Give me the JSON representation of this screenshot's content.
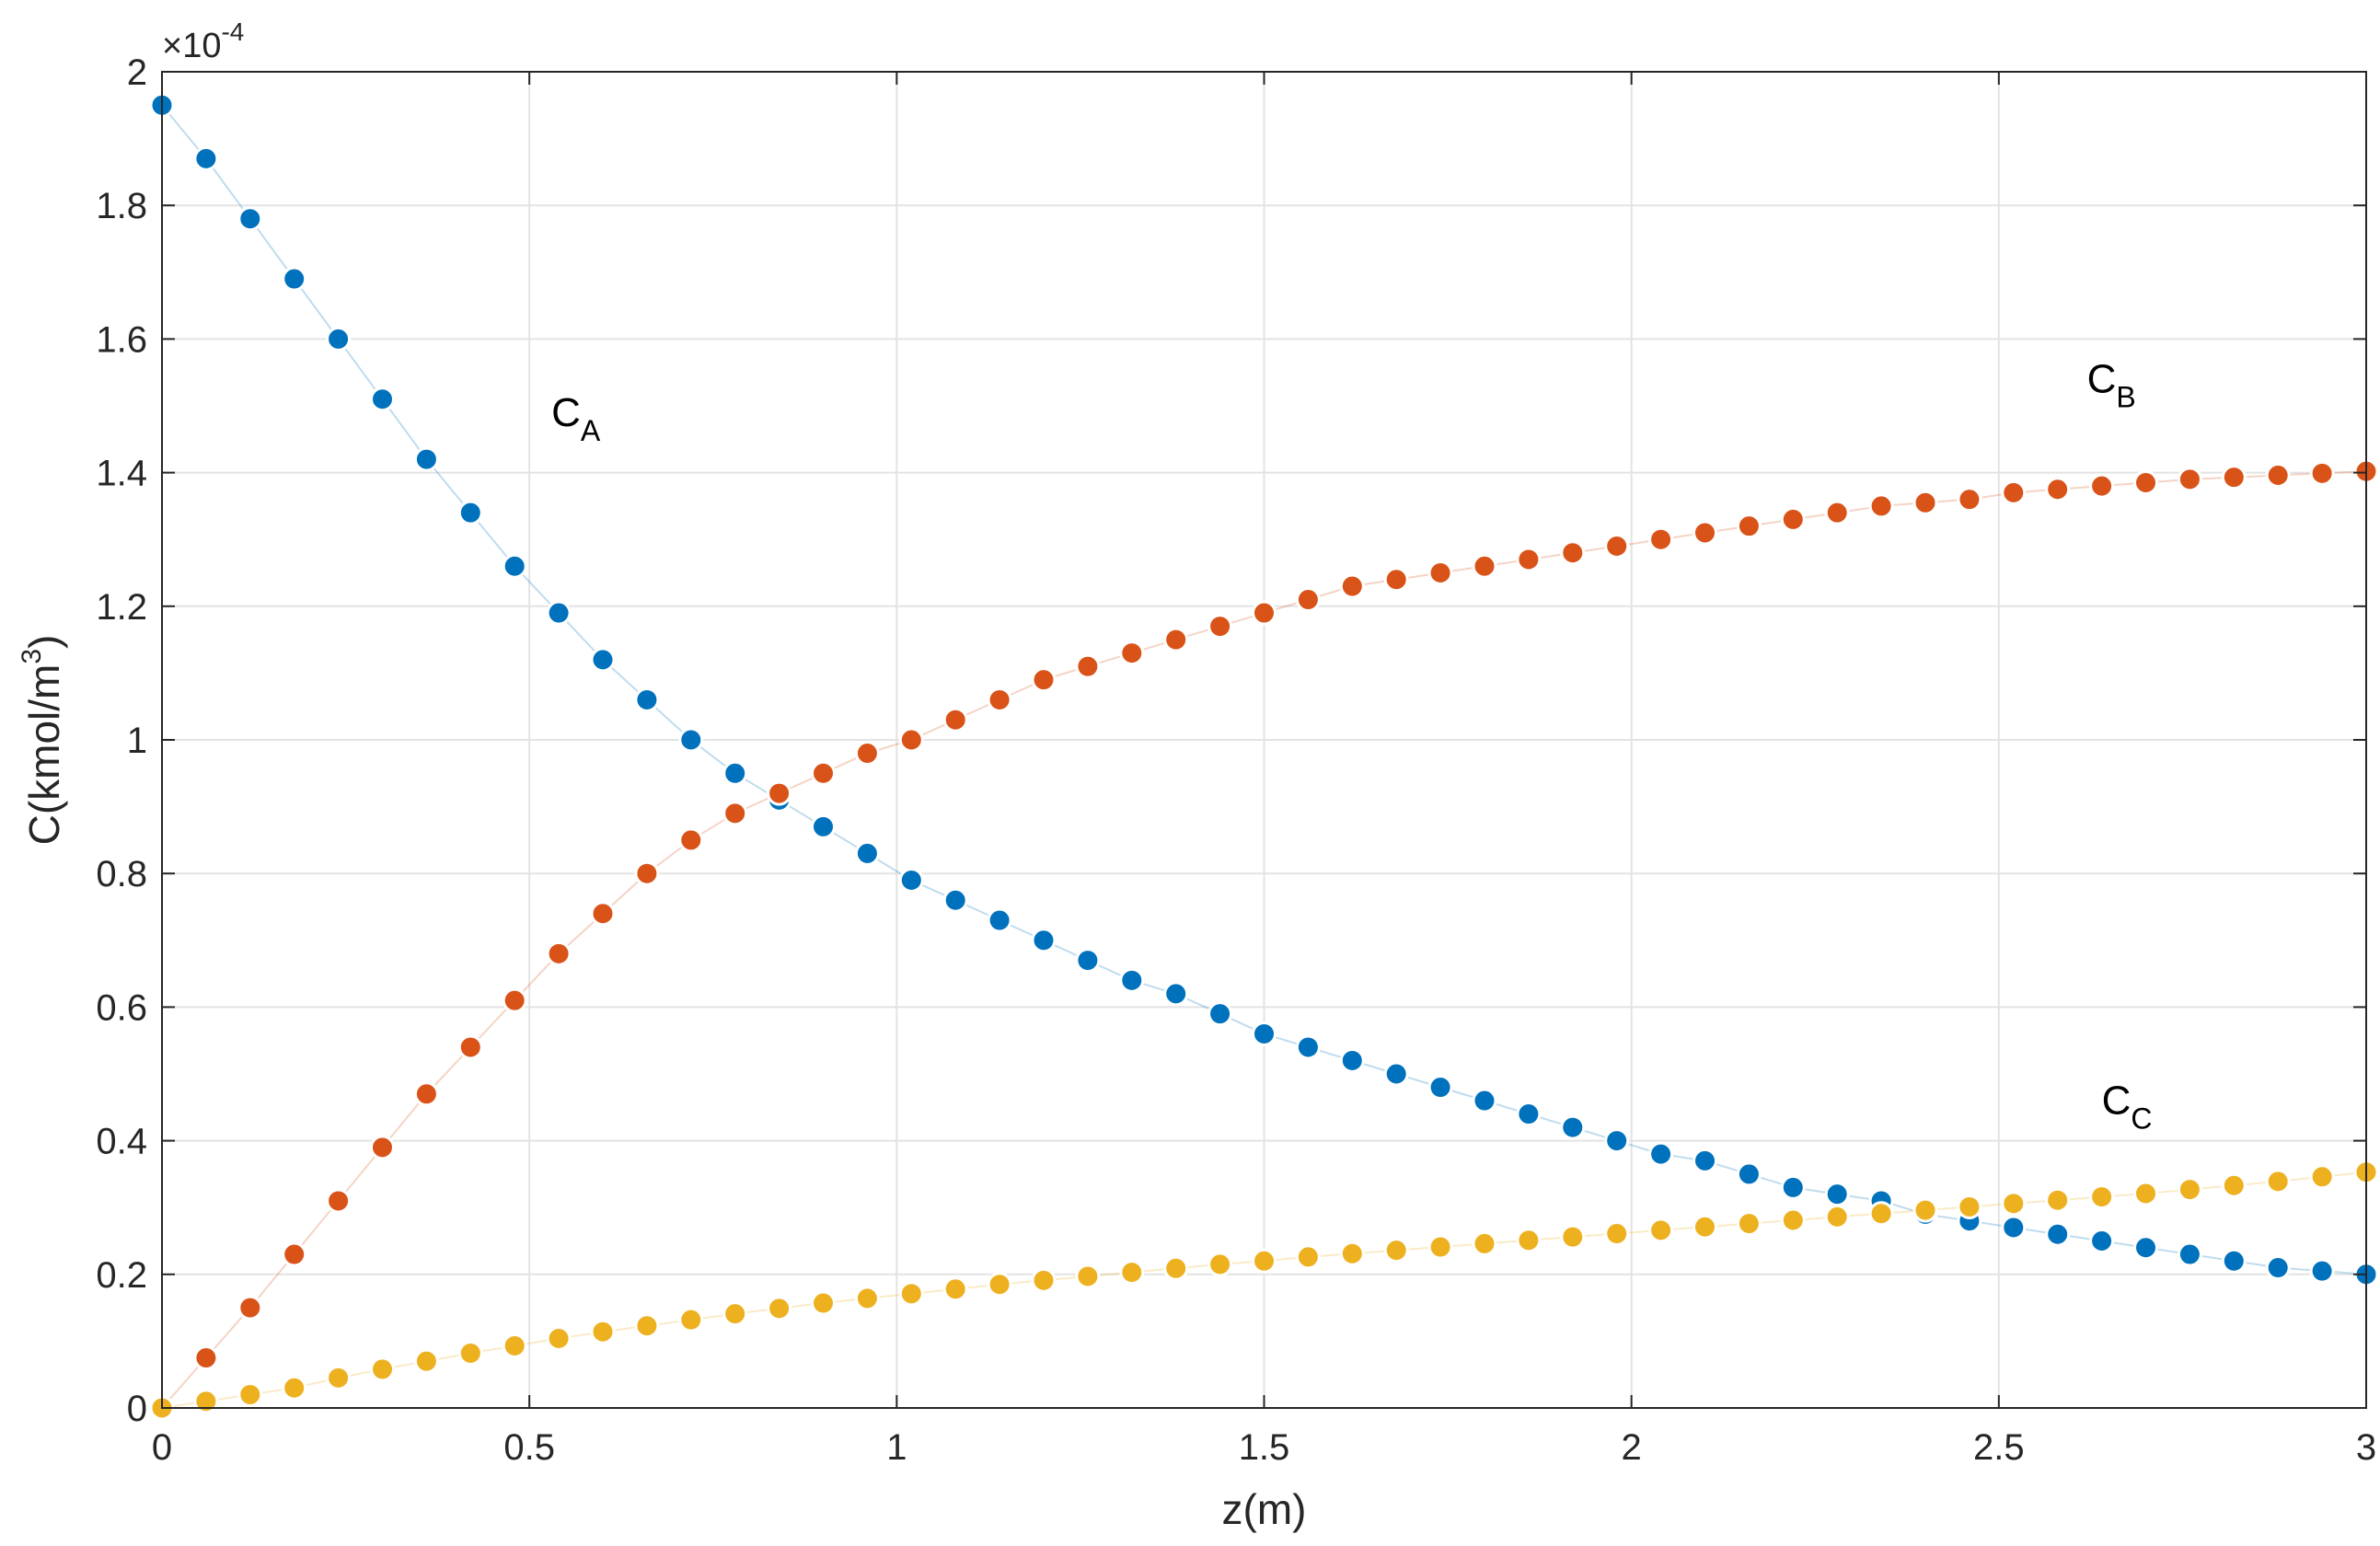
{
  "chart_data": {
    "type": "scatter",
    "title": "",
    "xlabel": "z(m)",
    "ylabel": "C(kmol/m",
    "ylabel_sup": "3",
    "ylabel_close": ")",
    "y_exponent_prefix": "×10",
    "y_exponent_power": "-4",
    "xlim": [
      0,
      3
    ],
    "ylim": [
      0,
      2
    ],
    "x_ticks": [
      "0",
      "0.5",
      "1",
      "1.5",
      "2",
      "2.5",
      "3"
    ],
    "y_ticks": [
      "0",
      "0.2",
      "0.4",
      "0.6",
      "0.8",
      "1",
      "1.2",
      "1.4",
      "1.6",
      "1.8",
      "2"
    ],
    "grid": true,
    "marker": "circle",
    "series": [
      {
        "name": "C",
        "subscript": "A",
        "color": "#0072BD",
        "x": [
          0,
          0.06,
          0.12,
          0.18,
          0.24,
          0.3,
          0.36,
          0.42,
          0.48,
          0.54,
          0.6,
          0.66,
          0.72,
          0.78,
          0.84,
          0.9,
          0.96,
          1.02,
          1.08,
          1.14,
          1.2,
          1.26,
          1.32,
          1.38,
          1.44,
          1.5,
          1.56,
          1.62,
          1.68,
          1.74,
          1.8,
          1.86,
          1.92,
          1.98,
          2.04,
          2.1,
          2.16,
          2.22,
          2.28,
          2.34,
          2.4,
          2.46,
          2.52,
          2.58,
          2.64,
          2.7,
          2.76,
          2.82,
          2.88,
          2.94,
          3.0
        ],
        "y": [
          1.95,
          1.87,
          1.78,
          1.69,
          1.6,
          1.51,
          1.42,
          1.34,
          1.26,
          1.19,
          1.12,
          1.06,
          1.0,
          0.95,
          0.91,
          0.87,
          0.83,
          0.79,
          0.76,
          0.73,
          0.7,
          0.67,
          0.64,
          0.62,
          0.59,
          0.56,
          0.54,
          0.52,
          0.5,
          0.48,
          0.46,
          0.44,
          0.42,
          0.4,
          0.38,
          0.37,
          0.35,
          0.33,
          0.32,
          0.31,
          0.29,
          0.28,
          0.27,
          0.26,
          0.25,
          0.24,
          0.23,
          0.22,
          0.21,
          0.205,
          0.2
        ]
      },
      {
        "name": "C",
        "subscript": "B",
        "color": "#D95319",
        "x": [
          0,
          0.06,
          0.12,
          0.18,
          0.24,
          0.3,
          0.36,
          0.42,
          0.48,
          0.54,
          0.6,
          0.66,
          0.72,
          0.78,
          0.84,
          0.9,
          0.96,
          1.02,
          1.08,
          1.14,
          1.2,
          1.26,
          1.32,
          1.38,
          1.44,
          1.5,
          1.56,
          1.62,
          1.68,
          1.74,
          1.8,
          1.86,
          1.92,
          1.98,
          2.04,
          2.1,
          2.16,
          2.22,
          2.28,
          2.34,
          2.4,
          2.46,
          2.52,
          2.58,
          2.64,
          2.7,
          2.76,
          2.82,
          2.88,
          2.94,
          3.0
        ],
        "y": [
          0,
          0.075,
          0.15,
          0.23,
          0.31,
          0.39,
          0.47,
          0.54,
          0.61,
          0.68,
          0.74,
          0.8,
          0.85,
          0.89,
          0.92,
          0.95,
          0.98,
          1.0,
          1.03,
          1.06,
          1.09,
          1.11,
          1.13,
          1.15,
          1.17,
          1.19,
          1.21,
          1.23,
          1.24,
          1.25,
          1.26,
          1.27,
          1.28,
          1.29,
          1.3,
          1.31,
          1.32,
          1.33,
          1.34,
          1.35,
          1.355,
          1.36,
          1.37,
          1.375,
          1.38,
          1.385,
          1.39,
          1.393,
          1.396,
          1.399,
          1.402
        ]
      },
      {
        "name": "C",
        "subscript": "C",
        "color": "#EDB120",
        "x": [
          0,
          0.06,
          0.12,
          0.18,
          0.24,
          0.3,
          0.36,
          0.42,
          0.48,
          0.54,
          0.6,
          0.66,
          0.72,
          0.78,
          0.84,
          0.9,
          0.96,
          1.02,
          1.08,
          1.14,
          1.2,
          1.26,
          1.32,
          1.38,
          1.44,
          1.5,
          1.56,
          1.62,
          1.68,
          1.74,
          1.8,
          1.86,
          1.92,
          1.98,
          2.04,
          2.1,
          2.16,
          2.22,
          2.28,
          2.34,
          2.4,
          2.46,
          2.52,
          2.58,
          2.64,
          2.7,
          2.76,
          2.82,
          2.88,
          2.94,
          3.0
        ],
        "y": [
          0,
          0.01,
          0.02,
          0.03,
          0.045,
          0.058,
          0.07,
          0.082,
          0.093,
          0.104,
          0.114,
          0.123,
          0.132,
          0.141,
          0.149,
          0.157,
          0.164,
          0.171,
          0.178,
          0.185,
          0.191,
          0.197,
          0.203,
          0.209,
          0.215,
          0.22,
          0.226,
          0.231,
          0.236,
          0.241,
          0.246,
          0.251,
          0.256,
          0.261,
          0.266,
          0.271,
          0.276,
          0.281,
          0.286,
          0.291,
          0.296,
          0.301,
          0.306,
          0.311,
          0.316,
          0.321,
          0.327,
          0.333,
          0.339,
          0.346,
          0.353
        ]
      }
    ],
    "annotations": [
      {
        "text": "C",
        "subscript": "A",
        "x": 0.53,
        "y": 1.47
      },
      {
        "text": "C",
        "subscript": "B",
        "x": 2.62,
        "y": 1.52
      },
      {
        "text": "C",
        "subscript": "C",
        "x": 2.64,
        "y": 0.44
      }
    ]
  }
}
